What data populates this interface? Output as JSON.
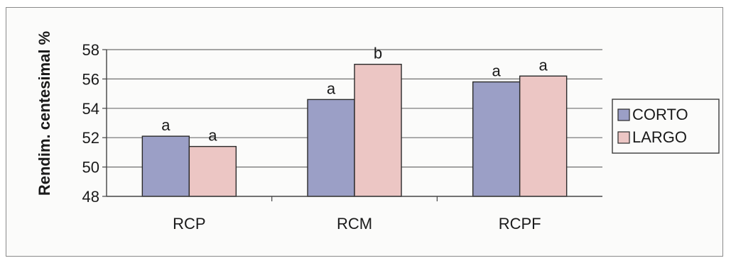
{
  "chart_data": {
    "type": "bar",
    "categories": [
      "RCP",
      "RCM",
      "RCPF"
    ],
    "series": [
      {
        "name": "CORTO",
        "values": [
          52.1,
          54.6,
          55.8
        ],
        "color": "#9b9fc6"
      },
      {
        "name": "LARGO",
        "values": [
          51.4,
          57.0,
          56.2
        ],
        "color": "#ecc6c4"
      }
    ],
    "annotations": [
      [
        "a",
        "a"
      ],
      [
        "a",
        "b"
      ],
      [
        "a",
        "a"
      ]
    ],
    "ylabel": "Rendim. centesimal %",
    "xlabel": "",
    "ylim": [
      48,
      58
    ],
    "yticks": [
      48,
      50,
      52,
      54,
      56,
      58
    ],
    "grid": true,
    "legend_position": "right"
  }
}
